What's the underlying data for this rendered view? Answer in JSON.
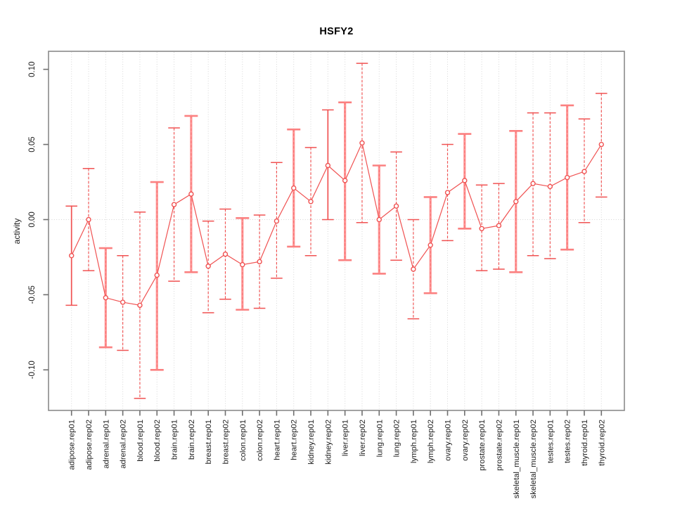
{
  "page": {
    "background": "#ffffff"
  },
  "chart_data": {
    "type": "line",
    "title": "HSFY2",
    "xlabel": "",
    "ylabel": "activity",
    "ylim": [
      -0.127,
      0.112
    ],
    "yticks": [
      -0.1,
      -0.05,
      0.0,
      0.05,
      0.1
    ],
    "ytick_labels": [
      "-0.10",
      "-0.05",
      "0.00",
      "0.05",
      "0.10"
    ],
    "legend_position": "none",
    "grid": {
      "vertical_dotted_per_category": true,
      "horizontal_dotted_zero_line": true
    },
    "point_marker": "open-circle",
    "categories": [
      "adipose.rep01",
      "adipose.rep02",
      "adrenal.rep01",
      "adrenal.rep02",
      "blood.rep01",
      "blood.rep02",
      "brain.rep01",
      "brain.rep02",
      "breast.rep01",
      "breast.rep02",
      "colon.rep01",
      "colon.rep02",
      "heart.rep01",
      "heart.rep02",
      "kidney.rep01",
      "kidney.rep02",
      "liver.rep01",
      "liver.rep02",
      "lung.rep01",
      "lung.rep02",
      "lymph.rep01",
      "lymph.rep02",
      "ovary.rep01",
      "ovary.rep02",
      "prostate.rep01",
      "prostate.rep02",
      "skeletal_muscle.rep01",
      "skeletal_muscle.rep02",
      "testes.rep01",
      "testes.rep02",
      "thyroid.rep01",
      "thyroid.rep02"
    ],
    "series": [
      {
        "name": "HSFY2 activity",
        "values": [
          -0.024,
          0.0,
          -0.052,
          -0.055,
          -0.057,
          -0.037,
          0.01,
          0.017,
          -0.031,
          -0.023,
          -0.03,
          -0.028,
          -0.001,
          0.021,
          0.012,
          0.036,
          0.026,
          0.051,
          0.0,
          0.009,
          -0.033,
          -0.017,
          0.018,
          0.026,
          -0.006,
          -0.004,
          0.012,
          0.024,
          0.022,
          0.028,
          0.032,
          0.05
        ],
        "error_low": [
          -0.057,
          -0.034,
          -0.085,
          -0.087,
          -0.119,
          -0.1,
          -0.041,
          -0.035,
          -0.062,
          -0.053,
          -0.06,
          -0.059,
          -0.039,
          -0.018,
          -0.024,
          0.0,
          -0.027,
          -0.002,
          -0.036,
          -0.027,
          -0.066,
          -0.049,
          -0.014,
          -0.006,
          -0.034,
          -0.033,
          -0.035,
          -0.024,
          -0.026,
          -0.02,
          -0.002,
          0.015
        ],
        "error_high": [
          0.009,
          0.034,
          -0.019,
          -0.024,
          0.005,
          0.025,
          0.061,
          0.069,
          -0.001,
          0.007,
          0.001,
          0.003,
          0.038,
          0.06,
          0.048,
          0.073,
          0.078,
          0.104,
          0.036,
          0.045,
          0.0,
          0.015,
          0.05,
          0.057,
          0.023,
          0.024,
          0.059,
          0.071,
          0.071,
          0.076,
          0.067,
          0.084
        ],
        "bar_styles": [
          "solid",
          "dashed",
          "thick",
          "dashed",
          "dashed",
          "thick",
          "dashed",
          "thick",
          "dashed",
          "dashed",
          "thick",
          "dashed",
          "dashed",
          "thick",
          "dashed",
          "solid",
          "thick",
          "dashed",
          "thick",
          "dashed",
          "dashed",
          "thick",
          "dashed",
          "thick",
          "dashed",
          "dashed",
          "thick",
          "dashed",
          "dashed",
          "thick",
          "dashed",
          "dashed"
        ]
      }
    ],
    "colors": {
      "line": "#f05252",
      "marker_stroke": "#f05252",
      "marker_fill": "#ffffff",
      "errorbar_dashed": "#f05252",
      "errorbar_thick": "#ff9595",
      "errorbar_thick_cap": "#fb8080",
      "grid": "#d6d6d6",
      "box": "#8a8a8a",
      "tick": "#6f6f6f",
      "text": "#1d1d1d"
    }
  }
}
